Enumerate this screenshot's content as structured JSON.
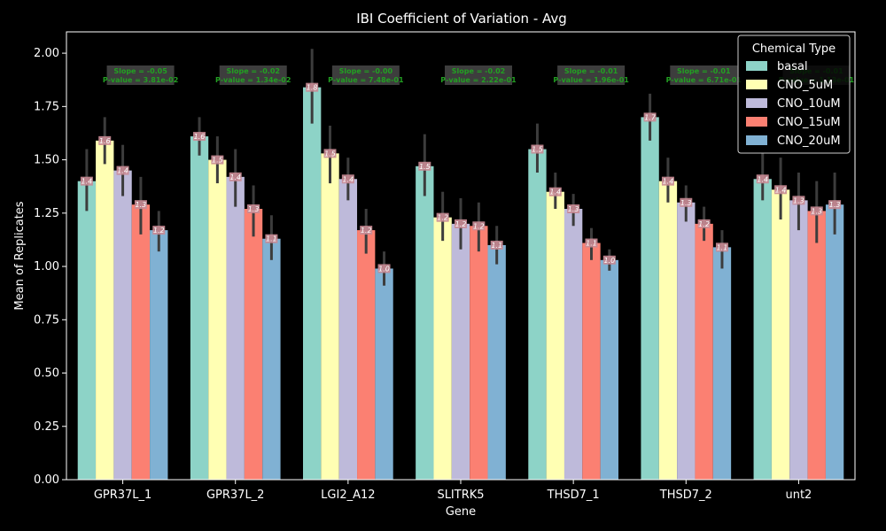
{
  "chart_data": {
    "type": "bar",
    "title": "IBI Coefficient of Variation - Avg",
    "xlabel": "Gene",
    "ylabel": "Mean of Replicates",
    "ylim": [
      0,
      2.1
    ],
    "yticks": [
      0.0,
      0.25,
      0.5,
      0.75,
      1.0,
      1.25,
      1.5,
      1.75,
      2.0
    ],
    "ytick_labels": [
      "0.00",
      "0.25",
      "0.50",
      "0.75",
      "1.00",
      "1.25",
      "1.50",
      "1.75",
      "2.00"
    ],
    "categories": [
      "GPR37L_1",
      "GPR37L_2",
      "LGI2_A12",
      "SLITRK5",
      "THSD7_1",
      "THSD7_2",
      "unt2"
    ],
    "legend_title": "Chemical Type",
    "legend_position": "top-right",
    "series": [
      {
        "name": "basal",
        "color": "#8dd3c7",
        "values": [
          1.4,
          1.61,
          1.84,
          1.47,
          1.55,
          1.7,
          1.41
        ],
        "err_low": [
          1.26,
          1.52,
          1.67,
          1.33,
          1.44,
          1.59,
          1.31
        ],
        "err_high": [
          1.55,
          1.7,
          2.02,
          1.62,
          1.67,
          1.81,
          1.53
        ],
        "labels": [
          "1.4",
          "1.6",
          "1.8",
          "1.5",
          "1.5",
          "1.7",
          "1.4"
        ]
      },
      {
        "name": "CNO_5uM",
        "color": "#ffffb3",
        "values": [
          1.59,
          1.5,
          1.53,
          1.23,
          1.35,
          1.4,
          1.36
        ],
        "err_low": [
          1.48,
          1.39,
          1.39,
          1.12,
          1.27,
          1.3,
          1.22
        ],
        "err_high": [
          1.7,
          1.61,
          1.66,
          1.35,
          1.44,
          1.51,
          1.51
        ],
        "labels": [
          "1.6",
          "1.5",
          "1.5",
          "1.2",
          "1.4",
          "1.4",
          "1.4"
        ]
      },
      {
        "name": "CNO_10uM",
        "color": "#bebada",
        "values": [
          1.45,
          1.42,
          1.41,
          1.2,
          1.27,
          1.3,
          1.31
        ],
        "err_low": [
          1.33,
          1.28,
          1.31,
          1.08,
          1.19,
          1.21,
          1.17
        ],
        "err_high": [
          1.57,
          1.55,
          1.51,
          1.32,
          1.34,
          1.38,
          1.44
        ],
        "labels": [
          "1.4",
          "1.4",
          "1.4",
          "1.2",
          "1.3",
          "1.3",
          "1.3"
        ]
      },
      {
        "name": "CNO_15uM",
        "color": "#fb8072",
        "values": [
          1.29,
          1.27,
          1.17,
          1.19,
          1.11,
          1.2,
          1.26
        ],
        "err_low": [
          1.15,
          1.14,
          1.06,
          1.07,
          1.03,
          1.12,
          1.11
        ],
        "err_high": [
          1.42,
          1.38,
          1.27,
          1.3,
          1.18,
          1.28,
          1.4
        ],
        "labels": [
          "1.3",
          "1.3",
          "1.2",
          "1.2",
          "1.1",
          "1.2",
          "1.3"
        ]
      },
      {
        "name": "CNO_20uM",
        "color": "#80b1d3",
        "values": [
          1.17,
          1.13,
          0.99,
          1.1,
          1.03,
          1.09,
          1.29
        ],
        "err_low": [
          1.07,
          1.03,
          0.91,
          1.01,
          0.98,
          0.99,
          1.15
        ],
        "err_high": [
          1.26,
          1.24,
          1.07,
          1.19,
          1.08,
          1.17,
          1.44
        ],
        "labels": [
          "1.2",
          "1.1",
          "1.0",
          "1.1",
          "1.0",
          "1.1",
          "1.3"
        ]
      }
    ],
    "annotations": [
      {
        "line1": "Slope = -0.05",
        "line2": "P-value = 3.81e-02"
      },
      {
        "line1": "Slope = -0.02",
        "line2": "P-value = 1.34e-02"
      },
      {
        "line1": "Slope = -0.00",
        "line2": "P-value = 7.48e-01"
      },
      {
        "line1": "Slope = -0.02",
        "line2": "P-value = 2.22e-01"
      },
      {
        "line1": "Slope = -0.01",
        "line2": "P-value = 1.96e-01"
      },
      {
        "line1": "Slope = -0.01",
        "line2": "P-value = 6.71e-01"
      },
      {
        "line1": "Slope = -0.01",
        "line2": "P-value = 1.13e-01"
      }
    ]
  }
}
